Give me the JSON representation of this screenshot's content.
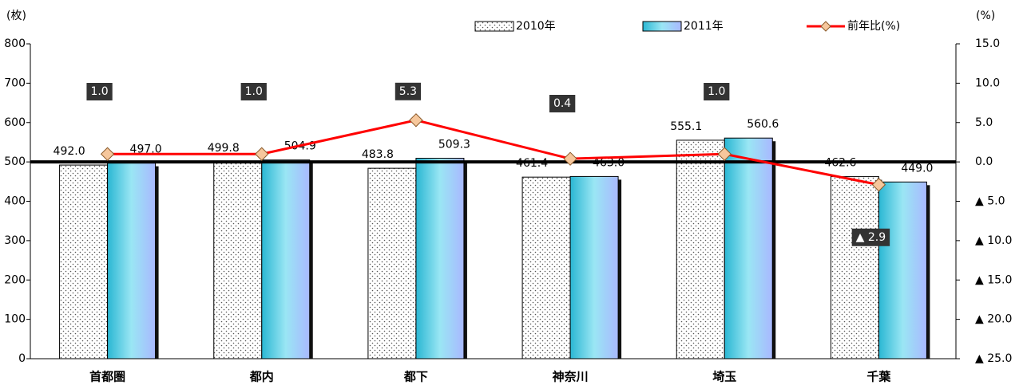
{
  "chart_data": {
    "type": "bar",
    "y_unit_label": "(枚)",
    "y2_unit_label": "(%)",
    "categories": [
      "首都圏",
      "都内",
      "都下",
      "神奈川",
      "埼玉",
      "千葉"
    ],
    "series": [
      {
        "name": "2010年",
        "color": "#ffffff",
        "pattern": "dots",
        "values": [
          492.0,
          499.8,
          483.8,
          461.4,
          555.1,
          462.6
        ],
        "value_labels": [
          "492.0",
          "499.8",
          "483.8",
          "461.4",
          "555.1",
          "462.6"
        ]
      },
      {
        "name": "2011年",
        "color": "#66ccee",
        "values": [
          497.0,
          504.9,
          509.3,
          463.0,
          560.6,
          449.0
        ],
        "value_labels": [
          "497.0",
          "504.9",
          "509.3",
          "463.0",
          "560.6",
          "449.0"
        ]
      },
      {
        "name": "前年比(%)",
        "type": "line",
        "axis": "y2",
        "color": "#ff0000",
        "marker_color": "#f6c79c",
        "values": [
          1.0,
          1.0,
          5.3,
          0.4,
          1.0,
          -2.9
        ],
        "value_labels": [
          "1.0",
          "1.0",
          "5.3",
          "0.4",
          "1.0",
          "▲ 2.9"
        ]
      }
    ],
    "ylim": [
      0,
      800
    ],
    "yticks": [
      0,
      100,
      200,
      300,
      400,
      500,
      600,
      700,
      800
    ],
    "y2lim": [
      -25,
      15
    ],
    "y2ticks": [
      {
        "value": 15,
        "label": "15.0"
      },
      {
        "value": 10,
        "label": "10.0"
      },
      {
        "value": 5,
        "label": "5.0"
      },
      {
        "value": 0,
        "label": "0.0"
      },
      {
        "value": -5,
        "label": "▲ 5.0"
      },
      {
        "value": -10,
        "label": "▲ 10.0"
      },
      {
        "value": -15,
        "label": "▲ 15.0"
      },
      {
        "value": -20,
        "label": "▲ 20.0"
      },
      {
        "value": -25,
        "label": "▲ 25.0"
      }
    ]
  }
}
